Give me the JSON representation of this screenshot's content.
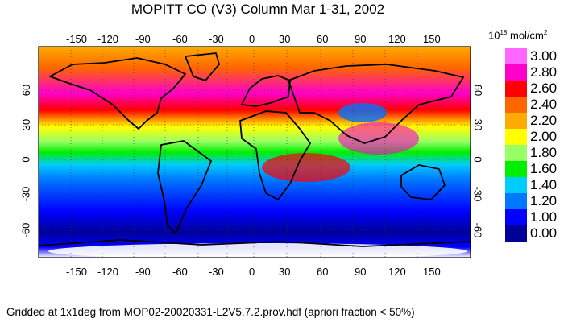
{
  "title": "MOPITT CO (V3) Column Mar 1-31, 2002",
  "footer": "Gridded at 1x1deg from MOP02-20020331-L2V5.7.2.prov.hdf (apriori fraction < 50%)",
  "units": {
    "prefix": "10",
    "exponent": "18",
    "text": " mol/cm",
    "power": "2"
  },
  "x_ticks": [
    "-150",
    "-120",
    "-90",
    "-60",
    "-30",
    "0",
    "30",
    "60",
    "90",
    "120",
    "150"
  ],
  "x_tick_values": [
    -150,
    -120,
    -90,
    -60,
    -30,
    0,
    30,
    60,
    90,
    120,
    150
  ],
  "y_ticks": [
    "60",
    "30",
    "0",
    "-30",
    "-60"
  ],
  "y_tick_values": [
    60,
    30,
    0,
    -30,
    -60
  ],
  "map_extent": {
    "lon": [
      -180,
      180
    ],
    "lat": [
      -90,
      90
    ]
  },
  "colorbar": [
    {
      "label": "3.00",
      "color": "#ff66ff"
    },
    {
      "label": "2.80",
      "color": "#ff00cc"
    },
    {
      "label": "2.60",
      "color": "#ff0000"
    },
    {
      "label": "2.40",
      "color": "#ff6600"
    },
    {
      "label": "2.20",
      "color": "#ffaa00"
    },
    {
      "label": "2.00",
      "color": "#ffff00"
    },
    {
      "label": "1.80",
      "color": "#99ff66"
    },
    {
      "label": "1.60",
      "color": "#00ee00"
    },
    {
      "label": "1.40",
      "color": "#00ccff"
    },
    {
      "label": "1.20",
      "color": "#0077ff"
    },
    {
      "label": "1.00",
      "color": "#0000ff"
    },
    {
      "label": "0.00",
      "color": "#000099"
    }
  ]
}
